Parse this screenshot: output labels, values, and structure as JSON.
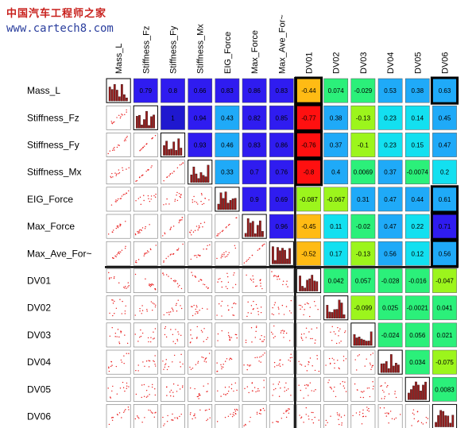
{
  "watermark": {
    "line1": "中国汽车工程师之家",
    "line2": "www.cartech8.com"
  },
  "chart_data": {
    "type": "heatmap",
    "variables": [
      "Mass_L",
      "Stiffness_Fz",
      "Stiffness_Fy",
      "Stiffness_Mx",
      "EIG_Force",
      "Max_Force",
      "Max_Ave_For~",
      "DV01",
      "DV02",
      "DV03",
      "DV04",
      "DV05",
      "DV06"
    ],
    "column_labels": [
      "Mass_L",
      "Stiffness_Fz",
      "Stiffness_Fy",
      "Stiffness_Mx",
      "EIG_Force",
      "Max_Force",
      "Max_Ave_For~",
      "DV01",
      "DV02",
      "DV03",
      "DV04",
      "DV05",
      "DV06"
    ],
    "upper_triangle_correlations": [
      [
        "0.79",
        "0.8",
        "0.66",
        "0.83",
        "0.86",
        "0.83",
        "-0.44",
        "0.074",
        "-0.029",
        "0.53",
        "0.38",
        "0.63"
      ],
      [
        "1",
        "0.94",
        "0.43",
        "0.82",
        "0.85",
        "-0.77",
        "0.38",
        "-0.13",
        "0.23",
        "0.14",
        "0.45"
      ],
      [
        "0.93",
        "0.46",
        "0.83",
        "0.86",
        "-0.76",
        "0.37",
        "-0.1",
        "0.23",
        "0.15",
        "0.47"
      ],
      [
        "0.33",
        "0.7",
        "0.76",
        "-0.8",
        "0.4",
        "0.0069",
        "0.37",
        "-0.0074",
        "0.2"
      ],
      [
        "0.9",
        "0.69",
        "-0.087",
        "-0.067",
        "0.31",
        "0.47",
        "0.44",
        "0.61"
      ],
      [
        "0.96",
        "-0.45",
        "0.11",
        "-0.02",
        "0.47",
        "0.22",
        "0.71"
      ],
      [
        "-0.52",
        "0.17",
        "-0.13",
        "0.56",
        "0.12",
        "0.56"
      ],
      [
        "0.042",
        "0.057",
        "-0.028",
        "-0.016",
        "-0.047"
      ],
      [
        "-0.099",
        "0.025",
        "-0.0021",
        "0.041"
      ],
      [
        "-0.024",
        "0.056",
        "0.021"
      ],
      [
        "0.034",
        "-0.075"
      ],
      [
        "0.0083"
      ]
    ],
    "lower_triangle": "scatter plots of each variable pair",
    "diagonal": "histograms of each variable",
    "highlighted_cells": [
      [
        0,
        7
      ],
      [
        1,
        7
      ],
      [
        2,
        7
      ],
      [
        3,
        7
      ],
      [
        0,
        12
      ],
      [
        4,
        12
      ],
      [
        5,
        12
      ],
      [
        6,
        12
      ]
    ],
    "colors": {
      "blue": "#2f1cf0",
      "deep_blue": "#1f18cf",
      "sky": "#1faaf8",
      "cyan": "#13e0f0",
      "green": "#2bf07a",
      "lime": "#9cf51c",
      "yellow": "#ffee28",
      "orange": "#ffbb14",
      "red": "#ff1010",
      "hist_bar": "#9b1c1c",
      "scatter_dot": "#e81a1a"
    }
  }
}
